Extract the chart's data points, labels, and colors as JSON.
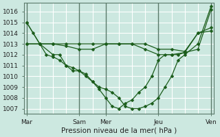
{
  "title": "Pression niveau de la mer( hPa )",
  "background_color": "#cce8e0",
  "plot_bg_color": "#cce8e0",
  "grid_color": "#ffffff",
  "vline_color": "#5a7a6a",
  "line_color": "#1a5c1a",
  "ylim": [
    1006.5,
    1016.8
  ],
  "yticks": [
    1007,
    1008,
    1009,
    1010,
    1011,
    1012,
    1013,
    1014,
    1015,
    1016
  ],
  "xtick_labels": [
    "Mar",
    "",
    "Sam",
    "Mer",
    "",
    "Jeu",
    "",
    "Ven"
  ],
  "xtick_positions": [
    0,
    1,
    2,
    3,
    4,
    5,
    6,
    7
  ],
  "day_vlines": [
    0,
    2,
    3,
    5,
    7
  ],
  "line1_x": [
    0,
    0.25,
    0.5,
    0.75,
    1.0,
    1.25,
    1.5,
    1.75,
    2.0,
    2.25,
    2.5,
    2.75,
    3.0,
    3.25,
    3.5,
    3.75,
    4.0,
    4.25,
    4.5,
    4.75,
    5.0,
    5.25,
    5.5,
    5.75,
    6.0,
    6.5,
    7.0
  ],
  "line1_y": [
    1015,
    1014,
    1013,
    1012,
    1011.8,
    1011.5,
    1011,
    1010.5,
    1010.5,
    1010,
    1009.5,
    1009,
    1008.8,
    1008.5,
    1008,
    1007.2,
    1007,
    1007,
    1007.2,
    1007.5,
    1008,
    1009,
    1010,
    1011.5,
    1012,
    1013,
    1016.5
  ],
  "line2_x": [
    0,
    0.5,
    1.0,
    1.5,
    2.0,
    2.5,
    3.0,
    3.5,
    4.0,
    4.5,
    5.0,
    5.5,
    6.0,
    6.5,
    7.0
  ],
  "line2_y": [
    1013,
    1013,
    1013,
    1012.8,
    1012.5,
    1012.5,
    1013,
    1013,
    1013,
    1012.5,
    1012,
    1012,
    1012.2,
    1012.5,
    1016.2
  ],
  "line3_x": [
    0,
    0.5,
    1.0,
    1.5,
    2.0,
    2.5,
    3.0,
    3.5,
    4.0,
    4.5,
    5.0,
    5.5,
    6.0,
    6.5,
    7.0
  ],
  "line3_y": [
    1013,
    1013,
    1013,
    1013,
    1013,
    1013,
    1013,
    1013,
    1013,
    1013,
    1012.5,
    1012.5,
    1012.3,
    1014,
    1014.5
  ],
  "line4_x": [
    0,
    0.5,
    1.0,
    1.25,
    1.5,
    1.75,
    2.0,
    2.25,
    2.5,
    2.75,
    3.0,
    3.25,
    3.5,
    3.75,
    4.0,
    4.25,
    4.5,
    4.75,
    5.0,
    5.25,
    5.5,
    5.75,
    6.0,
    6.5,
    7.0
  ],
  "line4_y": [
    1015,
    1013,
    1012,
    1012,
    1011,
    1010.8,
    1010.5,
    1010.2,
    1009.5,
    1008.8,
    1008,
    1007.2,
    1007,
    1007.5,
    1007.8,
    1008.5,
    1009,
    1010,
    1011.5,
    1012,
    1012,
    1012,
    1012.2,
    1014,
    1014.2
  ]
}
